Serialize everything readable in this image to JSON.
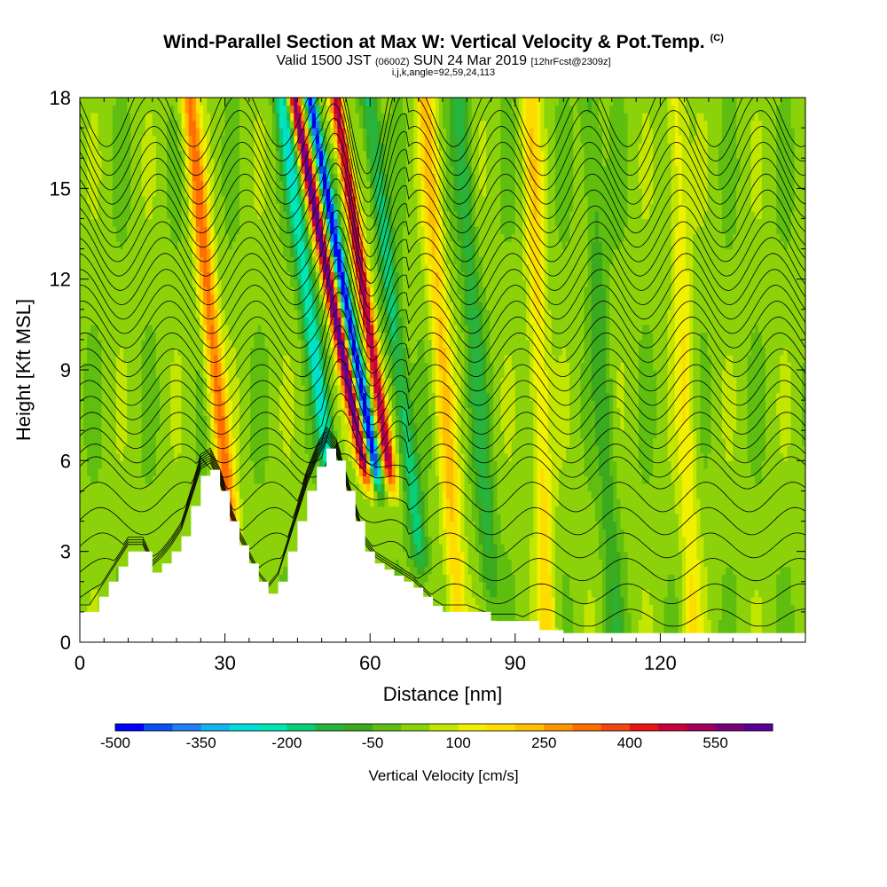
{
  "header": {
    "title": "Wind-Parallel Section at Max W: Vertical Velocity & Pot.Temp.",
    "copyright": "(C)",
    "valid_prefix": "Valid 1500 JST",
    "valid_zulu": "(0600Z)",
    "valid_date": "SUN 24 Mar 2019",
    "forecast_info": "[12hrFcst@2309z]",
    "index_line": "i,j,k,angle=92,59,24,113"
  },
  "chart_data": {
    "type": "heatmap",
    "xlabel": "Distance [nm]",
    "ylabel": "Height [Kft MSL]",
    "xlim": [
      0,
      150
    ],
    "ylim": [
      0,
      18
    ],
    "x_ticks": [
      0,
      30,
      60,
      90,
      120
    ],
    "x_tick_labels": [
      "0",
      "30",
      "60",
      "90",
      "120"
    ],
    "y_ticks": [
      0,
      3,
      6,
      9,
      12,
      15,
      18
    ],
    "y_tick_labels": [
      "0",
      "3",
      "6",
      "9",
      "12",
      "15",
      "18"
    ],
    "colorbar": {
      "title": "Vertical Velocity [cm/s]",
      "levels": [
        -500,
        -450,
        -400,
        -350,
        -300,
        -250,
        -200,
        -150,
        -100,
        -50,
        0,
        50,
        100,
        150,
        200,
        250,
        300,
        350,
        400,
        450,
        500,
        550,
        600
      ],
      "colors": [
        "#0000ff",
        "#0a50f0",
        "#1f7ff5",
        "#14b4f0",
        "#00dcdc",
        "#00e6b4",
        "#0acd78",
        "#28b43c",
        "#3caa1e",
        "#5fbe0f",
        "#8cd20a",
        "#c3e600",
        "#f0f000",
        "#ffdc00",
        "#ffbe00",
        "#ff9600",
        "#ff6e00",
        "#f04614",
        "#e61414",
        "#c8003c",
        "#a0005a",
        "#780078",
        "#5a0096"
      ],
      "tick_labels": [
        "-500",
        "-350",
        "-200",
        "-50",
        "100",
        "250",
        "400",
        "550"
      ]
    },
    "terrain_kft": [
      [
        0,
        1.0
      ],
      [
        2,
        1.0
      ],
      [
        4,
        1.5
      ],
      [
        6,
        2.0
      ],
      [
        8,
        2.5
      ],
      [
        10,
        3.0
      ],
      [
        13,
        3.0
      ],
      [
        15,
        2.3
      ],
      [
        17,
        2.6
      ],
      [
        19,
        3.0
      ],
      [
        21,
        3.5
      ],
      [
        23,
        4.5
      ],
      [
        25,
        5.5
      ],
      [
        27,
        5.7
      ],
      [
        29,
        5.0
      ],
      [
        31,
        4.0
      ],
      [
        33,
        3.2
      ],
      [
        35,
        2.6
      ],
      [
        37,
        2.0
      ],
      [
        39,
        1.6
      ],
      [
        41,
        2.0
      ],
      [
        43,
        3.0
      ],
      [
        45,
        4.0
      ],
      [
        47,
        5.0
      ],
      [
        49,
        5.8
      ],
      [
        51,
        6.4
      ],
      [
        53,
        6.0
      ],
      [
        55,
        5.0
      ],
      [
        57,
        4.0
      ],
      [
        59,
        3.0
      ],
      [
        61,
        2.6
      ],
      [
        63,
        2.4
      ],
      [
        65,
        2.2
      ],
      [
        67,
        2.0
      ],
      [
        69,
        1.8
      ],
      [
        71,
        1.5
      ],
      [
        73,
        1.2
      ],
      [
        75,
        1.0
      ],
      [
        80,
        1.0
      ],
      [
        85,
        0.7
      ],
      [
        90,
        0.7
      ],
      [
        95,
        0.4
      ],
      [
        100,
        0.3
      ],
      [
        110,
        0.3
      ],
      [
        120,
        0.3
      ],
      [
        150,
        0.3
      ]
    ],
    "updrafts": [
      {
        "x0": 55,
        "slope": -1.2,
        "amplitude": 600,
        "width": 1.3,
        "y_top": 18,
        "y_bottom": 6
      },
      {
        "x0": 61,
        "slope": -0.9,
        "amplitude": 520,
        "width": 1.3,
        "y_top": 18,
        "y_bottom": 6
      },
      {
        "x0": 28,
        "slope": -0.6,
        "amplitude": 300,
        "width": 1.8,
        "y_top": 18,
        "y_bottom": 4
      },
      {
        "x0": 75,
        "slope": -0.4,
        "amplitude": 180,
        "width": 2.0,
        "y_top": 18,
        "y_bottom": 1
      },
      {
        "x0": 95,
        "slope": -0.2,
        "amplitude": 150,
        "width": 2.0,
        "y_top": 18,
        "y_bottom": 0
      },
      {
        "x0": 125,
        "slope": -0.2,
        "amplitude": 120,
        "width": 2.0,
        "y_top": 18,
        "y_bottom": 0
      }
    ],
    "downdrafts": [
      {
        "x0": 57.5,
        "slope": -1.1,
        "amplitude": -520,
        "width": 1.2,
        "y_top": 18,
        "y_bottom": 6
      },
      {
        "x0": 49,
        "slope": -0.8,
        "amplitude": -250,
        "width": 1.8,
        "y_top": 18,
        "y_bottom": 6
      },
      {
        "x0": 66,
        "slope": -0.7,
        "amplitude": -200,
        "width": 1.8,
        "y_top": 18,
        "y_bottom": 3
      },
      {
        "x0": 82,
        "slope": -0.4,
        "amplitude": -130,
        "width": 2.0,
        "y_top": 18,
        "y_bottom": 2
      },
      {
        "x0": 108,
        "slope": -0.3,
        "amplitude": -100,
        "width": 2.0,
        "y_top": 18,
        "y_bottom": 0
      }
    ],
    "contour_heights_kft": [
      0.8,
      1.6,
      2.4,
      3.2,
      4.0,
      4.8,
      5.6,
      6.0,
      6.5,
      7.0,
      7.5,
      8.0,
      8.5,
      9.0,
      9.5,
      10.0,
      10.5,
      11.0,
      11.5,
      12.0,
      12.5,
      13.0,
      13.5,
      14.0,
      14.5,
      15.0,
      15.5,
      16.0,
      16.5,
      17.0,
      17.5
    ]
  }
}
